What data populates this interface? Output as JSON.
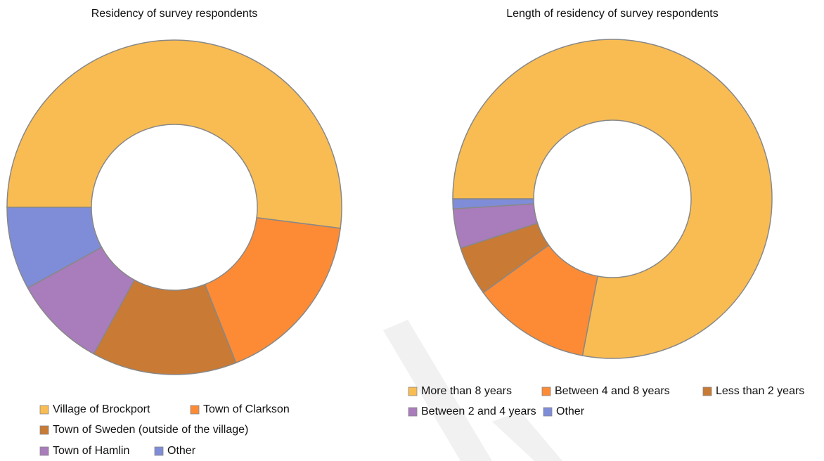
{
  "chart_data": [
    {
      "type": "pie",
      "title": "Residency of survey respondents",
      "categories": [
        "Village of Brockport",
        "Town of Clarkson",
        "Town of Sweden (outside of the village)",
        "Town of Hamlin",
        "Other"
      ],
      "values": [
        52,
        17,
        14,
        9,
        8
      ],
      "colors": [
        "#f9bc52",
        "#fd8b35",
        "#c97a34",
        "#a97cbc",
        "#7f8dd8"
      ]
    },
    {
      "type": "pie",
      "title": "Length of residency of survey respondents",
      "categories": [
        "More than 8 years",
        "Between 4 and 8 years",
        "Less than 2 years",
        "Between 2 and 4 years",
        "Other"
      ],
      "values": [
        78,
        12,
        5,
        4,
        1
      ],
      "colors": [
        "#f9bc52",
        "#fd8b35",
        "#c97a34",
        "#a97cbc",
        "#7f8dd8"
      ]
    }
  ]
}
